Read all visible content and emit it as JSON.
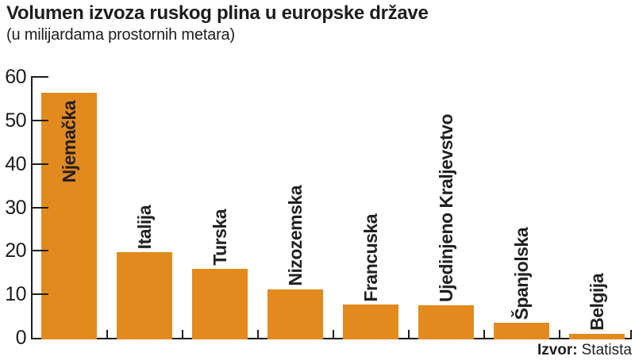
{
  "header": {
    "title": "Volumen izvoza ruskog plina u europske države",
    "subtitle": "(u milijardama prostornih metara)"
  },
  "source": {
    "label": "Izvor:",
    "value": "Statista"
  },
  "colors": {
    "bar": "#E28A1E",
    "axis": "#1D1D1B",
    "text": "#1D1D1B"
  },
  "chart_data": {
    "type": "bar",
    "title": "Volumen izvoza ruskog plina u europske države",
    "subtitle": "(u milijardama prostornih metara)",
    "categories": [
      "Njemačka",
      "Italija",
      "Turska",
      "Nizozemska",
      "Francuska",
      "Ujedinjeno Kraljevstvo",
      "Španjolska",
      "Belgija"
    ],
    "values": [
      56.3,
      19.7,
      15.9,
      11.2,
      7.6,
      7.5,
      3.4,
      0.9
    ],
    "xlabel": "",
    "ylabel": "u milijardama prostornih metara",
    "ylim": [
      0,
      60
    ],
    "yticks": [
      0,
      10,
      20,
      30,
      40,
      50,
      60
    ],
    "grid": false,
    "legend": false,
    "bar_color": "#E28A1E",
    "bar_label_rotation": -90,
    "first_bar_label_inside": true,
    "source": "Izvor: Statista"
  }
}
